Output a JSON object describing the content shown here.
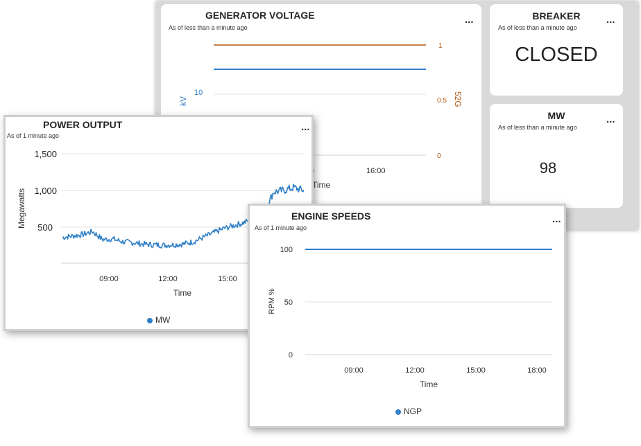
{
  "colors": {
    "blue": "#2f80c8",
    "orange": "#b35a14",
    "text": "#333333",
    "grid": "#e2e2e2"
  },
  "generator_voltage": {
    "title": "GENERATOR VOLTAGE",
    "subtitle": "As of less than a minute ago",
    "menu": "...",
    "y_left_label": "kV",
    "y_right_label": "52G",
    "x_label": "Time",
    "y_left_ticks": [
      "10"
    ],
    "y_right_ticks": [
      "1",
      "0.5",
      "0"
    ],
    "x_ticks": [
      "0",
      "16:00"
    ]
  },
  "breaker": {
    "title": "BREAKER",
    "subtitle": "As of less than a minute ago",
    "menu": "...",
    "value": "CLOSED"
  },
  "mw": {
    "title": "MW",
    "subtitle": "As of less than a minute ago",
    "menu": "...",
    "value": "98"
  },
  "power_output": {
    "title": "POWER OUTPUT",
    "subtitle": "As of 1 minute ago",
    "menu": "...",
    "y_label": "Megawatts",
    "x_label": "Time",
    "y_ticks": [
      "1,500",
      "1,000",
      "500"
    ],
    "x_ticks": [
      "09:00",
      "12:00",
      "15:00"
    ],
    "legend": "MW"
  },
  "engine_speeds": {
    "title": "ENGINE SPEEDS",
    "subtitle": "As of 1 minute ago",
    "menu": "...",
    "y_label": "RPM %",
    "x_label": "Time",
    "y_ticks": [
      "100",
      "50",
      "0"
    ],
    "x_ticks": [
      "09:00",
      "12:00",
      "15:00",
      "18:00"
    ],
    "legend": "NGP"
  },
  "chart_data": [
    {
      "type": "line",
      "title": "GENERATOR VOLTAGE",
      "xlabel": "Time",
      "ylabel": "kV",
      "y2label": "52G",
      "y2lim": [
        0,
        1
      ],
      "series": [
        {
          "axis": "left",
          "values": [
            11.5,
            11.5
          ]
        },
        {
          "axis": "right",
          "values": [
            1,
            1
          ]
        }
      ]
    },
    {
      "type": "line",
      "title": "POWER OUTPUT",
      "xlabel": "Time",
      "ylabel": "Megawatts",
      "ylim": [
        0,
        1600
      ],
      "x": [
        "06:30",
        "07:00",
        "07:30",
        "08:00",
        "08:30",
        "09:00",
        "09:30",
        "10:00",
        "10:30",
        "11:00",
        "11:30",
        "12:00",
        "12:30",
        "13:00",
        "13:30",
        "14:00",
        "14:30",
        "15:00",
        "15:30",
        "16:00",
        "16:30",
        "17:00",
        "17:30",
        "18:00",
        "18:30"
      ],
      "series": [
        {
          "name": "MW",
          "values": [
            360,
            380,
            400,
            440,
            330,
            340,
            300,
            290,
            270,
            260,
            255,
            260,
            270,
            300,
            360,
            420,
            480,
            520,
            560,
            620,
            700,
            980,
            1000,
            1040,
            1000
          ]
        }
      ]
    },
    {
      "type": "line",
      "title": "ENGINE SPEEDS",
      "xlabel": "Time",
      "ylabel": "RPM %",
      "ylim": [
        0,
        100
      ],
      "series": [
        {
          "name": "NGP",
          "values": [
            100,
            100
          ]
        }
      ]
    }
  ]
}
